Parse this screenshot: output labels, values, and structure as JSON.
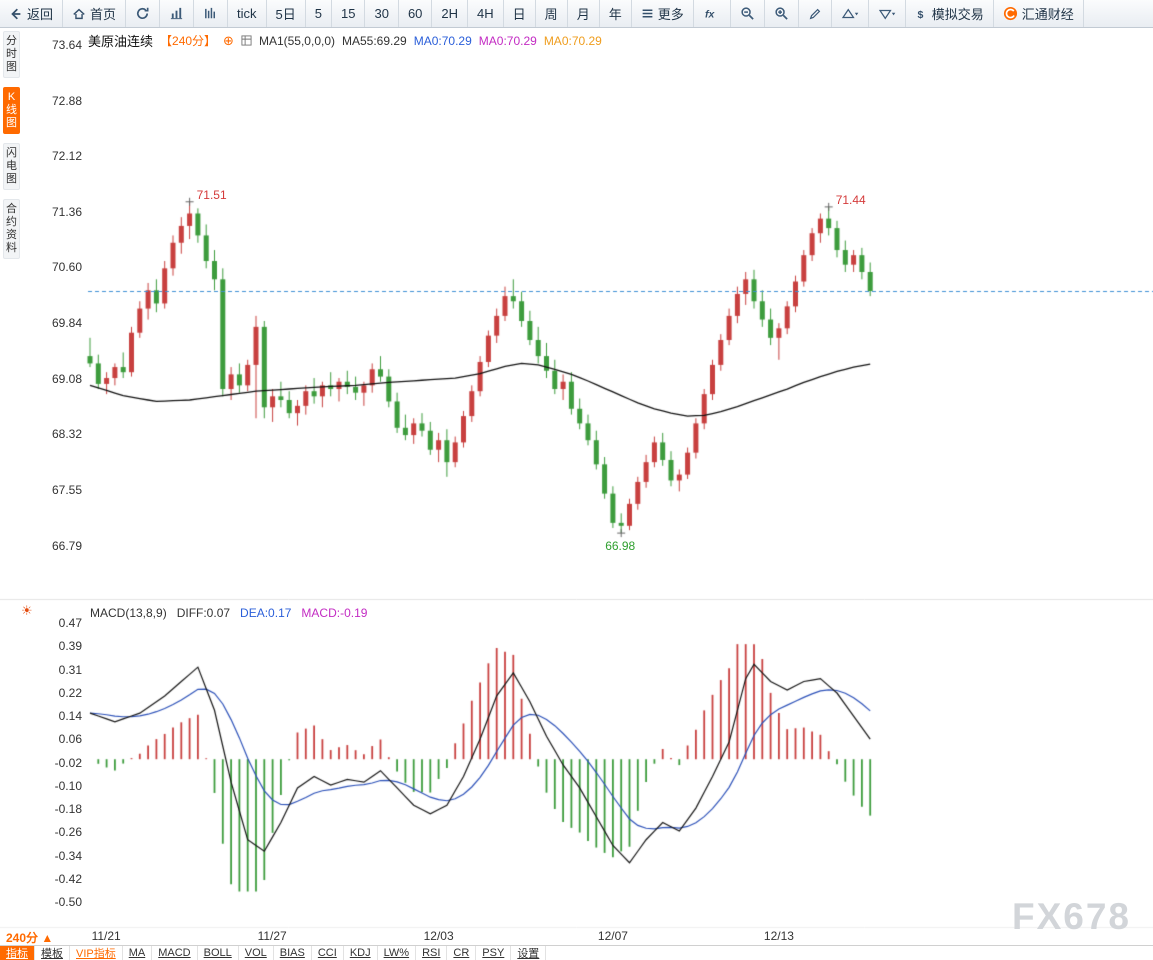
{
  "watermark": "FX678",
  "icons": {
    "add": "⊕",
    "sun": "☀",
    "triangle_up": "▲"
  },
  "colors": {
    "accent": "#ff6a00",
    "up": "#c8403f",
    "down": "#3d9c3d",
    "ma_line": "#111111",
    "diff_line": "#151515",
    "dea_line": "#2b50b8",
    "dashed_price_line": "#3d8fd4",
    "annotation_red": "#d43a3a",
    "annotation_green": "#2fa02f"
  },
  "toolbar": {
    "items": [
      {
        "name": "back-button",
        "icon": "back",
        "label": "返回"
      },
      {
        "name": "home-button",
        "icon": "home",
        "label": "首页"
      },
      {
        "name": "refresh-button",
        "icon": "refresh"
      },
      {
        "name": "bar-chart-button",
        "icon": "bars-chart"
      },
      {
        "name": "tick-chart-button",
        "icon": "hist-chart"
      },
      {
        "name": "period-tick-button",
        "label": "tick"
      },
      {
        "name": "period-5d-button",
        "label": "5日"
      },
      {
        "name": "period-5-button",
        "label": "5"
      },
      {
        "name": "period-15-button",
        "label": "15"
      },
      {
        "name": "period-30-button",
        "label": "30"
      },
      {
        "name": "period-60-button",
        "label": "60"
      },
      {
        "name": "period-2h-button",
        "label": "2H"
      },
      {
        "name": "period-4h-button",
        "label": "4H"
      },
      {
        "name": "period-day-button",
        "label": "日"
      },
      {
        "name": "period-week-button",
        "label": "周"
      },
      {
        "name": "period-month-button",
        "label": "月"
      },
      {
        "name": "period-year-button",
        "label": "年"
      },
      {
        "name": "more-button",
        "icon": "menu",
        "label": "更多"
      },
      {
        "name": "indicator-fx-button",
        "icon": "fx"
      },
      {
        "name": "zoom-out-button",
        "icon": "zoom-out"
      },
      {
        "name": "zoom-in-button",
        "icon": "zoom-in"
      },
      {
        "name": "draw-button",
        "icon": "pencil"
      },
      {
        "name": "trendline-tool-button",
        "icon": "tri-up"
      },
      {
        "name": "shape-tool-button",
        "icon": "tri-down"
      },
      {
        "name": "sim-trading-button",
        "icon": "dollar",
        "label": "模拟交易"
      },
      {
        "name": "huitong-logo-button",
        "icon": "logo",
        "label": "汇通财经"
      }
    ]
  },
  "sidebar": {
    "items": [
      {
        "label": "分时图",
        "active": false
      },
      {
        "label": "K线图",
        "active": true
      },
      {
        "label": "闪电图",
        "active": false
      },
      {
        "label": "合约资料",
        "active": false
      }
    ]
  },
  "chart_header": {
    "symbol": "美原油连续",
    "period": "【240分】",
    "ma_settings": "MA1(55,0,0,0)",
    "ma55": "MA55:69.29",
    "ma0_blue": "MA0:70.29",
    "ma0_magenta": "MA0:70.29",
    "ma0_gold": "MA0:70.29"
  },
  "macd_header": {
    "title": "MACD(13,8,9)",
    "diff": "DIFF:0.07",
    "dea": "DEA:0.17",
    "macd": "MACD:-0.19"
  },
  "bottom": {
    "period_label": "240分",
    "tabs": [
      {
        "label": "指标",
        "active": true
      },
      {
        "label": "模板"
      },
      {
        "label": "VIP指标",
        "vip": true
      },
      {
        "label": "MA"
      },
      {
        "label": "MACD"
      },
      {
        "label": "BOLL"
      },
      {
        "label": "VOL"
      },
      {
        "label": "BIAS"
      },
      {
        "label": "CCI"
      },
      {
        "label": "KDJ"
      },
      {
        "label": "LW%"
      },
      {
        "label": "RSI"
      },
      {
        "label": "CR"
      },
      {
        "label": "PSY"
      },
      {
        "label": "设置"
      }
    ]
  },
  "chart_data": {
    "type": "candlestick",
    "symbol": "美原油连续",
    "period_minutes": 240,
    "price_panel": {
      "y_ticks": [
        "73.64",
        "72.88",
        "72.12",
        "71.36",
        "70.60",
        "69.84",
        "69.08",
        "68.32",
        "67.55",
        "66.79"
      ],
      "y_range": [
        66.79,
        73.64
      ],
      "last_price": 70.29,
      "ma55_last": 69.29,
      "x_labels": [
        {
          "label": "11/21",
          "bar": 2
        },
        {
          "label": "11/27",
          "bar": 22
        },
        {
          "label": "12/03",
          "bar": 42
        },
        {
          "label": "12/07",
          "bar": 63
        },
        {
          "label": "12/13",
          "bar": 83
        }
      ],
      "annotations": [
        {
          "text": "71.51",
          "bar": 12,
          "value": 71.51,
          "color": "red",
          "placement": "above"
        },
        {
          "text": "71.44",
          "bar": 89,
          "value": 71.44,
          "color": "red",
          "placement": "above"
        },
        {
          "text": "66.98",
          "bar": 64,
          "value": 66.98,
          "color": "green",
          "placement": "below"
        }
      ],
      "candles_ohlc": [
        [
          69.4,
          69.65,
          69.25,
          69.3
        ],
        [
          69.3,
          69.42,
          68.95,
          69.02
        ],
        [
          69.02,
          69.18,
          68.88,
          69.1
        ],
        [
          69.1,
          69.3,
          69.0,
          69.25
        ],
        [
          69.25,
          69.45,
          69.1,
          69.18
        ],
        [
          69.18,
          69.8,
          69.12,
          69.72
        ],
        [
          69.72,
          70.15,
          69.65,
          70.05
        ],
        [
          70.05,
          70.4,
          69.9,
          70.3
        ],
        [
          70.3,
          70.45,
          70.0,
          70.12
        ],
        [
          70.12,
          70.7,
          70.05,
          70.6
        ],
        [
          70.6,
          71.05,
          70.5,
          70.95
        ],
        [
          70.95,
          71.3,
          70.8,
          71.18
        ],
        [
          71.18,
          71.51,
          71.0,
          71.35
        ],
        [
          71.35,
          71.42,
          70.95,
          71.05
        ],
        [
          71.05,
          71.2,
          70.6,
          70.7
        ],
        [
          70.7,
          70.85,
          70.3,
          70.45
        ],
        [
          70.45,
          70.6,
          68.85,
          68.95
        ],
        [
          68.95,
          69.25,
          68.8,
          69.15
        ],
        [
          69.15,
          69.3,
          68.9,
          69.0
        ],
        [
          69.0,
          69.35,
          68.92,
          69.28
        ],
        [
          69.28,
          69.95,
          68.55,
          69.8
        ],
        [
          69.8,
          69.88,
          68.55,
          68.7
        ],
        [
          68.7,
          68.95,
          68.5,
          68.85
        ],
        [
          68.85,
          69.05,
          68.7,
          68.8
        ],
        [
          68.8,
          68.92,
          68.55,
          68.62
        ],
        [
          68.62,
          68.8,
          68.45,
          68.72
        ],
        [
          68.72,
          69.0,
          68.6,
          68.92
        ],
        [
          68.92,
          69.1,
          68.75,
          68.85
        ],
        [
          68.85,
          69.05,
          68.7,
          69.0
        ],
        [
          69.0,
          69.18,
          68.85,
          68.95
        ],
        [
          68.95,
          69.1,
          68.78,
          69.05
        ],
        [
          69.05,
          69.2,
          68.88,
          68.98
        ],
        [
          68.98,
          69.12,
          68.8,
          68.9
        ],
        [
          68.9,
          69.05,
          68.72,
          69.0
        ],
        [
          69.0,
          69.3,
          68.9,
          69.22
        ],
        [
          69.22,
          69.4,
          69.05,
          69.12
        ],
        [
          69.12,
          69.22,
          68.7,
          68.78
        ],
        [
          68.78,
          68.9,
          68.35,
          68.42
        ],
        [
          68.42,
          68.6,
          68.25,
          68.32
        ],
        [
          68.32,
          68.55,
          68.2,
          68.48
        ],
        [
          68.48,
          68.62,
          68.3,
          68.38
        ],
        [
          68.38,
          68.5,
          68.05,
          68.12
        ],
        [
          68.12,
          68.35,
          67.95,
          68.25
        ],
        [
          68.25,
          68.4,
          67.75,
          67.95
        ],
        [
          67.95,
          68.3,
          67.88,
          68.22
        ],
        [
          68.22,
          68.65,
          68.15,
          68.58
        ],
        [
          68.58,
          69.0,
          68.5,
          68.92
        ],
        [
          68.92,
          69.4,
          68.85,
          69.32
        ],
        [
          69.32,
          69.75,
          69.25,
          69.68
        ],
        [
          69.68,
          70.05,
          69.58,
          69.95
        ],
        [
          69.95,
          70.35,
          69.88,
          70.22
        ],
        [
          70.22,
          70.45,
          70.05,
          70.15
        ],
        [
          70.15,
          70.28,
          69.8,
          69.88
        ],
        [
          69.88,
          70.02,
          69.55,
          69.62
        ],
        [
          69.62,
          69.8,
          69.3,
          69.4
        ],
        [
          69.4,
          69.58,
          69.1,
          69.2
        ],
        [
          69.2,
          69.35,
          68.88,
          68.95
        ],
        [
          68.95,
          69.15,
          68.8,
          69.05
        ],
        [
          69.05,
          69.18,
          68.6,
          68.68
        ],
        [
          68.68,
          68.82,
          68.4,
          68.48
        ],
        [
          68.48,
          68.6,
          68.18,
          68.25
        ],
        [
          68.25,
          68.38,
          67.85,
          67.92
        ],
        [
          67.92,
          68.02,
          67.45,
          67.52
        ],
        [
          67.52,
          67.62,
          67.05,
          67.12
        ],
        [
          67.12,
          67.25,
          66.98,
          67.08
        ],
        [
          67.08,
          67.45,
          67.02,
          67.38
        ],
        [
          67.38,
          67.75,
          67.3,
          67.68
        ],
        [
          67.68,
          68.05,
          67.6,
          67.95
        ],
        [
          67.95,
          68.3,
          67.88,
          68.22
        ],
        [
          68.22,
          68.35,
          67.9,
          67.98
        ],
        [
          67.98,
          68.1,
          67.62,
          67.7
        ],
        [
          67.7,
          67.85,
          67.55,
          67.78
        ],
        [
          67.78,
          68.15,
          67.72,
          68.08
        ],
        [
          68.08,
          68.55,
          68.0,
          68.48
        ],
        [
          68.48,
          68.95,
          68.4,
          68.88
        ],
        [
          68.88,
          69.35,
          68.8,
          69.28
        ],
        [
          69.28,
          69.7,
          69.2,
          69.62
        ],
        [
          69.62,
          70.05,
          69.55,
          69.95
        ],
        [
          69.95,
          70.35,
          69.85,
          70.25
        ],
        [
          70.25,
          70.55,
          70.1,
          70.45
        ],
        [
          70.45,
          70.58,
          70.05,
          70.15
        ],
        [
          70.15,
          70.3,
          69.8,
          69.9
        ],
        [
          69.9,
          70.05,
          69.55,
          69.65
        ],
        [
          69.65,
          69.85,
          69.35,
          69.78
        ],
        [
          69.78,
          70.15,
          69.7,
          70.08
        ],
        [
          70.08,
          70.5,
          70.0,
          70.42
        ],
        [
          70.42,
          70.85,
          70.35,
          70.78
        ],
        [
          70.78,
          71.15,
          70.7,
          71.08
        ],
        [
          71.08,
          71.35,
          70.95,
          71.28
        ],
        [
          71.28,
          71.44,
          71.05,
          71.15
        ],
        [
          71.15,
          71.25,
          70.75,
          70.85
        ],
        [
          70.85,
          70.98,
          70.55,
          70.65
        ],
        [
          70.65,
          70.85,
          70.55,
          70.78
        ],
        [
          70.78,
          70.88,
          70.45,
          70.55
        ],
        [
          70.55,
          70.68,
          70.22,
          70.29
        ]
      ],
      "ma55_keypoints": [
        [
          0,
          69.0
        ],
        [
          4,
          68.86
        ],
        [
          8,
          68.78
        ],
        [
          12,
          68.8
        ],
        [
          16,
          68.86
        ],
        [
          20,
          68.92
        ],
        [
          24,
          68.95
        ],
        [
          28,
          68.98
        ],
        [
          32,
          69.0
        ],
        [
          36,
          69.04
        ],
        [
          40,
          69.07
        ],
        [
          44,
          69.1
        ],
        [
          47,
          69.16
        ],
        [
          50,
          69.26
        ],
        [
          52,
          69.3
        ],
        [
          54,
          69.28
        ],
        [
          56,
          69.22
        ],
        [
          58,
          69.15
        ],
        [
          60,
          69.06
        ],
        [
          62,
          68.96
        ],
        [
          64,
          68.86
        ],
        [
          66,
          68.76
        ],
        [
          68,
          68.68
        ],
        [
          70,
          68.62
        ],
        [
          72,
          68.58
        ],
        [
          74,
          68.59
        ],
        [
          76,
          68.64
        ],
        [
          78,
          68.71
        ],
        [
          80,
          68.79
        ],
        [
          82,
          68.87
        ],
        [
          84,
          68.95
        ],
        [
          86,
          69.04
        ],
        [
          88,
          69.12
        ],
        [
          90,
          69.19
        ],
        [
          92,
          69.25
        ],
        [
          94,
          69.29
        ]
      ]
    },
    "macd_panel": {
      "params": "13,8,9",
      "y_ticks": [
        "0.47",
        "0.39",
        "0.31",
        "0.22",
        "0.14",
        "0.06",
        "-0.02",
        "-0.10",
        "-0.18",
        "-0.26",
        "-0.34",
        "-0.42",
        "-0.50"
      ],
      "y_range": [
        -0.5,
        0.47
      ],
      "diff_last": 0.07,
      "dea_last": 0.17,
      "hist_last": -0.19,
      "dea_ema_period": 9,
      "hist_multiplier": 2,
      "diff_keypoints": [
        [
          0,
          0.16
        ],
        [
          3,
          0.13
        ],
        [
          6,
          0.16
        ],
        [
          9,
          0.22
        ],
        [
          13,
          0.32
        ],
        [
          15,
          0.17
        ],
        [
          17,
          -0.08
        ],
        [
          19,
          -0.28
        ],
        [
          21,
          -0.32
        ],
        [
          23,
          -0.22
        ],
        [
          25,
          -0.1
        ],
        [
          27,
          -0.06
        ],
        [
          29,
          -0.09
        ],
        [
          31,
          -0.07
        ],
        [
          33,
          -0.08
        ],
        [
          35,
          -0.04
        ],
        [
          37,
          -0.1
        ],
        [
          39,
          -0.16
        ],
        [
          41,
          -0.19
        ],
        [
          43,
          -0.16
        ],
        [
          45,
          -0.06
        ],
        [
          47,
          0.07
        ],
        [
          49,
          0.22
        ],
        [
          51,
          0.3
        ],
        [
          53,
          0.2
        ],
        [
          55,
          0.08
        ],
        [
          57,
          -0.02
        ],
        [
          59,
          -0.1
        ],
        [
          61,
          -0.2
        ],
        [
          63,
          -0.3
        ],
        [
          65,
          -0.36
        ],
        [
          67,
          -0.28
        ],
        [
          69,
          -0.22
        ],
        [
          71,
          -0.25
        ],
        [
          73,
          -0.17
        ],
        [
          75,
          -0.06
        ],
        [
          77,
          0.06
        ],
        [
          79,
          0.28
        ],
        [
          80,
          0.33
        ],
        [
          82,
          0.27
        ],
        [
          84,
          0.24
        ],
        [
          86,
          0.27
        ],
        [
          88,
          0.28
        ],
        [
          90,
          0.23
        ],
        [
          92,
          0.15
        ],
        [
          94,
          0.07
        ]
      ]
    }
  }
}
